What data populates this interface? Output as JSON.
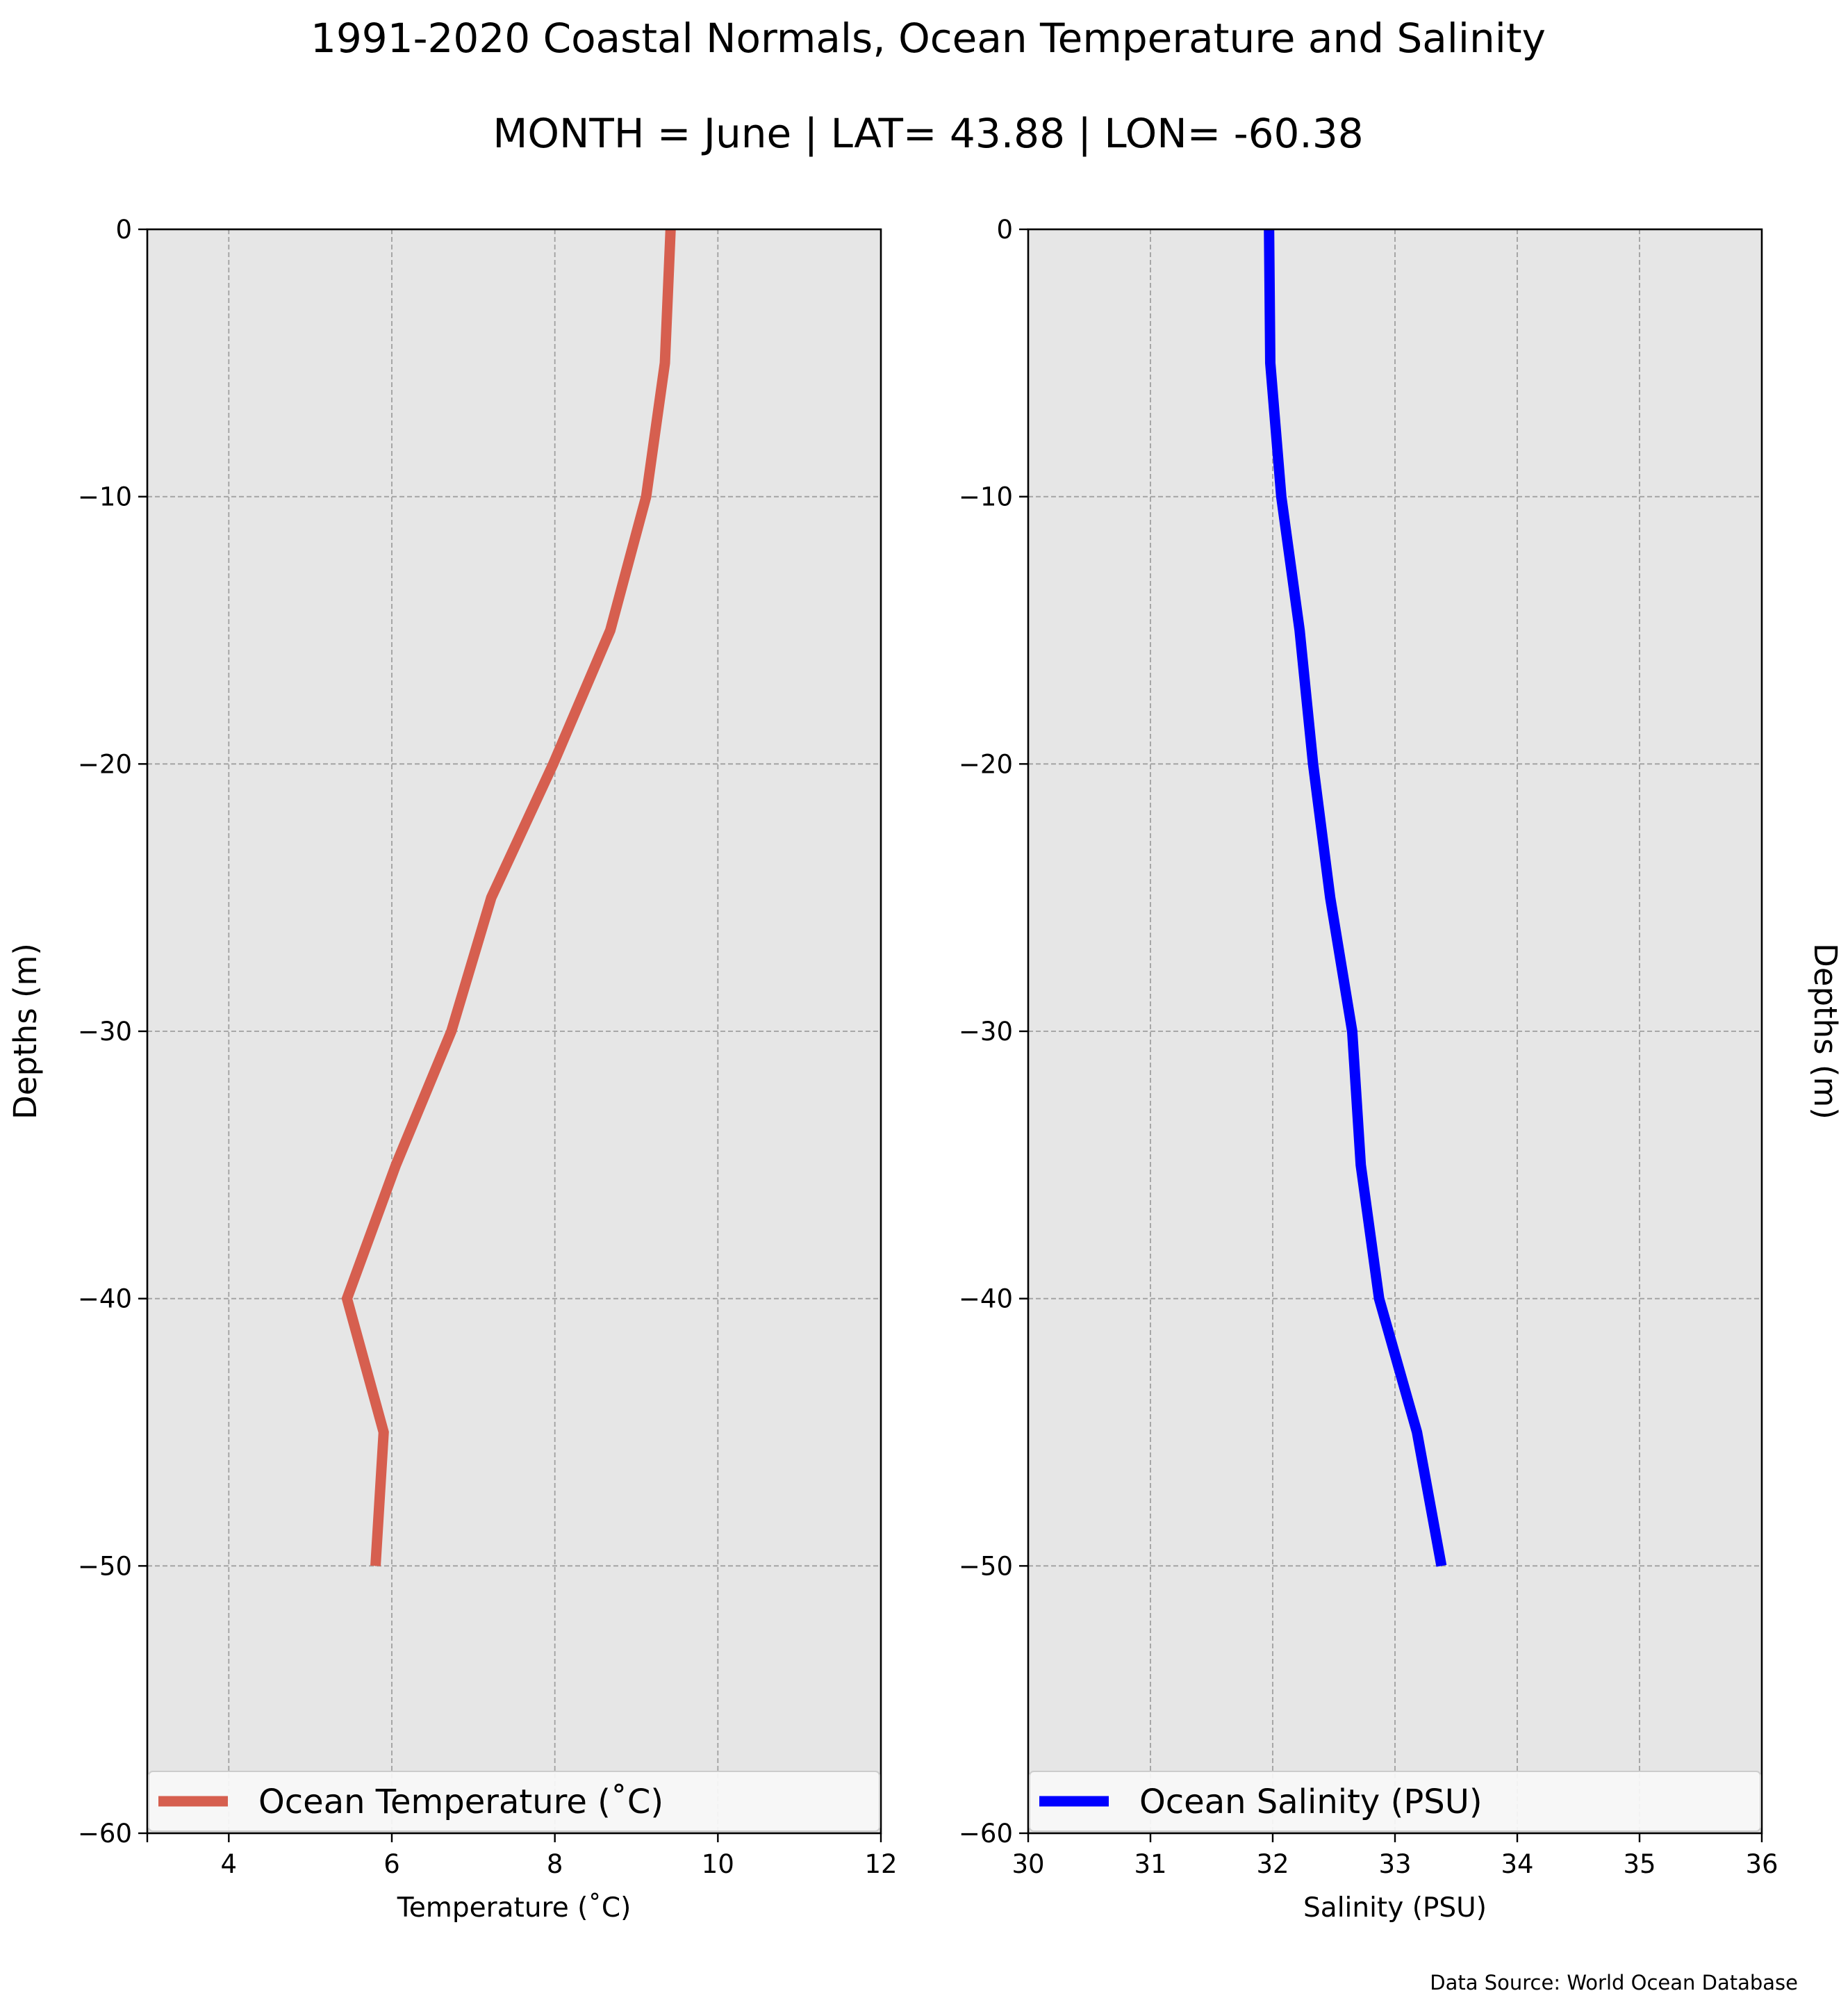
{
  "figure": {
    "title": "1991-2020 Coastal Normals, Ocean Temperature and Salinity",
    "subtitle": "MONTH = June | LAT= 43.88 | LON= -60.38",
    "source_note": "Data Source: World Ocean Database"
  },
  "chart_data": [
    {
      "type": "line",
      "orientation": "depth-profile",
      "xlabel": "Temperature ($^\\circ$C)",
      "xlabel_display": "Temperature (˚C)",
      "ylabel": "Depths (m)",
      "ylabel_position": "left",
      "xlim": [
        3,
        12
      ],
      "ylim": [
        -60,
        0
      ],
      "xticks": [
        4,
        6,
        8,
        10,
        12
      ],
      "yticks": [
        0,
        -10,
        -20,
        -30,
        -40,
        -50,
        -60
      ],
      "grid": true,
      "legend": "lower center",
      "series": [
        {
          "name": "Ocean Temperature (˚C)",
          "color": "#d65f4f",
          "depth": [
            0,
            -5,
            -10,
            -15,
            -20,
            -25,
            -30,
            -35,
            -40,
            -45,
            -50
          ],
          "values": [
            9.42,
            9.35,
            9.12,
            8.68,
            7.98,
            7.22,
            6.73,
            6.05,
            5.45,
            5.9,
            5.8
          ]
        }
      ]
    },
    {
      "type": "line",
      "orientation": "depth-profile",
      "xlabel": "Salinity (PSU)",
      "ylabel": "Depths (m)",
      "ylabel_position": "right",
      "xlim": [
        30,
        36
      ],
      "ylim": [
        -60,
        0
      ],
      "xticks": [
        30,
        31,
        32,
        33,
        34,
        35,
        36
      ],
      "yticks": [
        0,
        -10,
        -20,
        -30,
        -40,
        -50,
        -60
      ],
      "grid": true,
      "legend": "lower center",
      "series": [
        {
          "name": "Ocean Salinity (PSU)",
          "color": "#0000ff",
          "depth": [
            0,
            -5,
            -10,
            -15,
            -20,
            -25,
            -30,
            -35,
            -40,
            -45,
            -50
          ],
          "values": [
            31.97,
            31.98,
            32.07,
            32.22,
            32.33,
            32.47,
            32.65,
            32.72,
            32.87,
            33.18,
            33.38
          ]
        }
      ]
    }
  ]
}
